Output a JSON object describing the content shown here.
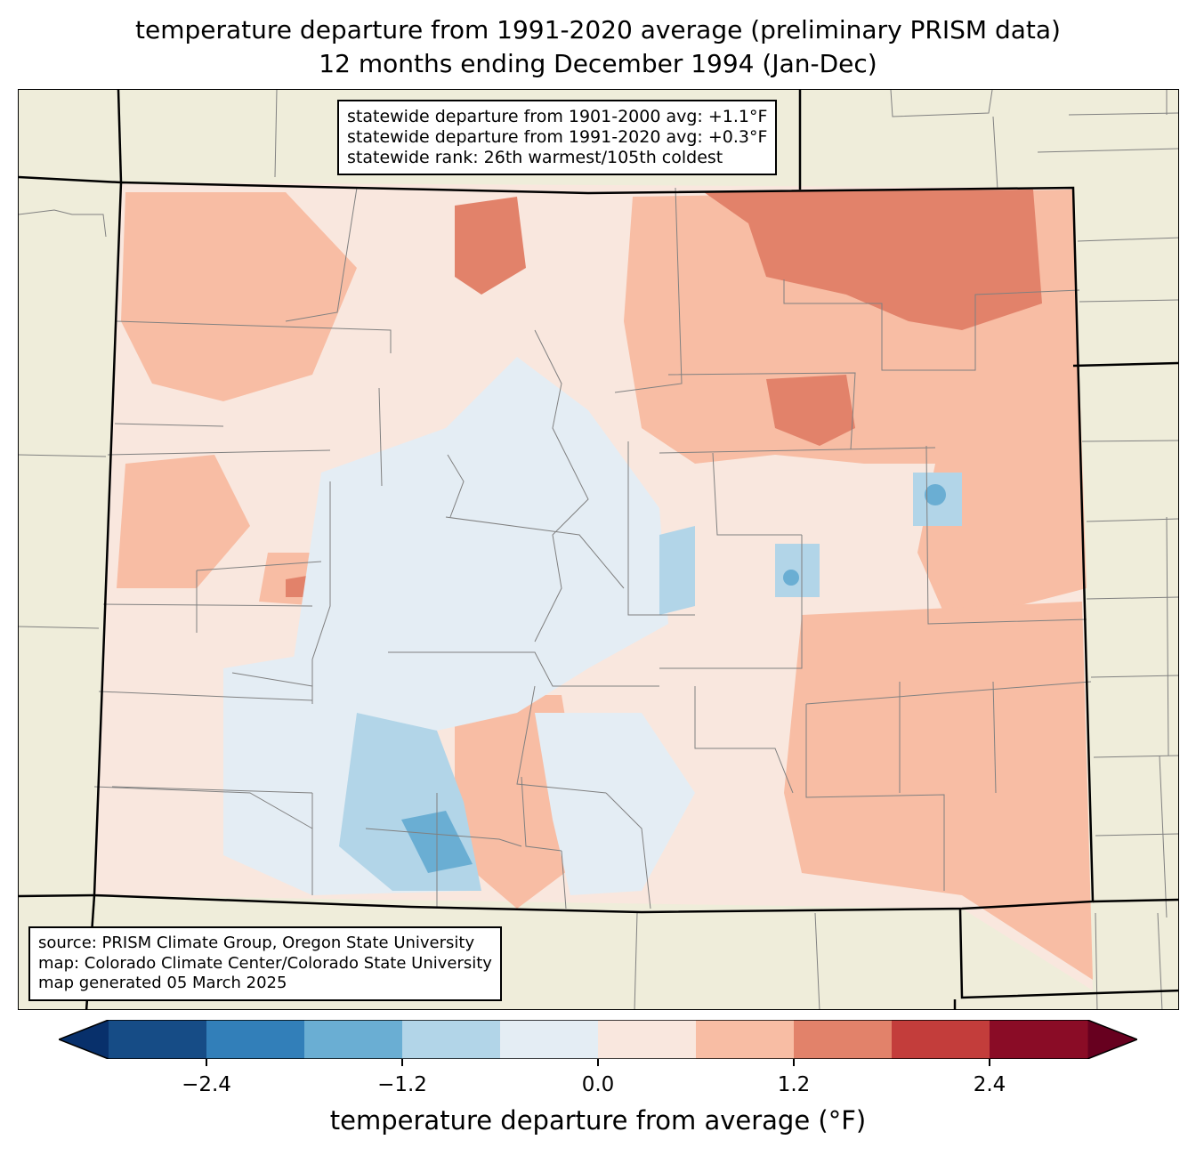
{
  "title": {
    "line1": "temperature departure from 1991-2020 average (preliminary PRISM data)",
    "line2": "12 months ending December 1994 (Jan-Dec)"
  },
  "stats_box": {
    "line1": "statewide departure from 1901-2000 avg: +1.1°F",
    "line2": "statewide departure from 1991-2020 avg: +0.3°F",
    "line3": "statewide rank: 26th warmest/105th coldest"
  },
  "source_box": {
    "line1": "source: PRISM Climate Group, Oregon State University",
    "line2": "map: Colorado Climate Center/Colorado State University",
    "line3": "map generated 05 March 2025"
  },
  "colorbar": {
    "label": "temperature departure from average (°F)",
    "ticks": [
      "−2.4",
      "−1.2",
      "0.0",
      "1.2",
      "2.4"
    ],
    "tick_values": [
      -2.4,
      -1.2,
      0.0,
      1.2,
      2.4
    ],
    "bounds": [
      -3.0,
      -2.4,
      -1.8,
      -1.2,
      -0.6,
      0.0,
      0.6,
      1.2,
      1.8,
      2.4,
      3.0
    ],
    "colors": [
      "#164c86",
      "#327fb9",
      "#6aaed3",
      "#b2d5e8",
      "#e4edf4",
      "#f9e7de",
      "#f8bda4",
      "#e2826a",
      "#c33d3b",
      "#8a0c26"
    ],
    "extend_low_color": "#08306b",
    "extend_high_color": "#67001f"
  },
  "map_colors": {
    "background": "#efedda",
    "county_line": "#808080",
    "state_line": "#000000"
  }
}
